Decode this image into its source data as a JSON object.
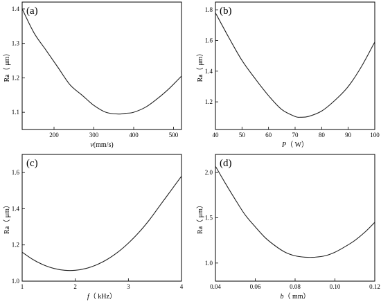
{
  "chart_data": [
    {
      "type": "line",
      "panel_label": "(a)",
      "xlabel_italic": "v",
      "xlabel_rest": "(mm/s)",
      "ylabel": "Ra（ μm）",
      "xlim": [
        120,
        520
      ],
      "ylim": [
        1.05,
        1.42
      ],
      "xticks": [
        200,
        300,
        400,
        500
      ],
      "yticks": [
        1.1,
        1.2,
        1.3,
        1.4
      ],
      "xtick_labels": [
        "200",
        "300",
        "400",
        "500"
      ],
      "ytick_labels": [
        "1.1",
        "1.2",
        "1.3",
        "1.4"
      ],
      "series": [
        {
          "x": [
            120,
            150,
            180,
            210,
            240,
            270,
            300,
            330,
            360,
            380,
            400,
            430,
            460,
            490,
            520
          ],
          "y": [
            1.4,
            1.33,
            1.28,
            1.23,
            1.18,
            1.15,
            1.12,
            1.1,
            1.095,
            1.097,
            1.1,
            1.115,
            1.14,
            1.17,
            1.205
          ]
        }
      ]
    },
    {
      "type": "line",
      "panel_label": "(b)",
      "xlabel_italic": "P",
      "xlabel_rest": "（ W）",
      "ylabel": "Ra（ μm）",
      "xlim": [
        40,
        100
      ],
      "ylim": [
        1.02,
        1.85
      ],
      "xticks": [
        40,
        50,
        60,
        70,
        80,
        90,
        100
      ],
      "yticks": [
        1.2,
        1.4,
        1.6,
        1.8
      ],
      "xtick_labels": [
        "40",
        "50",
        "60",
        "70",
        "80",
        "90",
        "100"
      ],
      "ytick_labels": [
        "1.2",
        "1.4",
        "1.6",
        "1.8"
      ],
      "series": [
        {
          "x": [
            40,
            45,
            50,
            55,
            60,
            65,
            70,
            72,
            75,
            80,
            85,
            90,
            95,
            100
          ],
          "y": [
            1.78,
            1.62,
            1.47,
            1.35,
            1.24,
            1.15,
            1.105,
            1.1,
            1.105,
            1.14,
            1.21,
            1.3,
            1.43,
            1.59
          ]
        }
      ]
    },
    {
      "type": "line",
      "panel_label": "(c)",
      "xlabel_italic": "f",
      "xlabel_rest": "（ kHz）",
      "ylabel": "Ra（ μm）",
      "xlim": [
        1,
        4
      ],
      "ylim": [
        1.0,
        1.7
      ],
      "xticks": [
        1,
        2,
        3,
        4
      ],
      "yticks": [
        1.0,
        1.2,
        1.4,
        1.6
      ],
      "xtick_labels": [
        "1",
        "2",
        "3",
        "4"
      ],
      "ytick_labels": [
        "1.0",
        "1.2",
        "1.4",
        "1.6"
      ],
      "series": [
        {
          "x": [
            1,
            1.2,
            1.4,
            1.6,
            1.8,
            2.0,
            2.2,
            2.4,
            2.6,
            2.8,
            3.0,
            3.2,
            3.4,
            3.6,
            3.8,
            4.0
          ],
          "y": [
            1.16,
            1.12,
            1.09,
            1.07,
            1.06,
            1.06,
            1.07,
            1.09,
            1.12,
            1.16,
            1.21,
            1.27,
            1.34,
            1.42,
            1.5,
            1.58
          ]
        }
      ]
    },
    {
      "type": "line",
      "panel_label": "(d)",
      "xlabel_italic": "b",
      "xlabel_rest": "（ mm）",
      "ylabel": "Ra（ μm）",
      "xlim": [
        0.04,
        0.12
      ],
      "ylim": [
        0.8,
        2.2
      ],
      "xticks": [
        0.04,
        0.06,
        0.08,
        0.1,
        0.12
      ],
      "yticks": [
        1.0,
        1.5,
        2.0
      ],
      "xtick_labels": [
        "0.04",
        "0.06",
        "0.08",
        "0.10",
        "0.12"
      ],
      "ytick_labels": [
        "1.0",
        "1.5",
        "2.0"
      ],
      "series": [
        {
          "x": [
            0.04,
            0.045,
            0.05,
            0.055,
            0.06,
            0.065,
            0.07,
            0.075,
            0.08,
            0.085,
            0.09,
            0.095,
            0.1,
            0.105,
            0.11,
            0.115,
            0.12
          ],
          "y": [
            2.07,
            1.88,
            1.7,
            1.53,
            1.4,
            1.28,
            1.19,
            1.12,
            1.08,
            1.065,
            1.065,
            1.08,
            1.12,
            1.18,
            1.25,
            1.34,
            1.45
          ]
        }
      ]
    }
  ]
}
